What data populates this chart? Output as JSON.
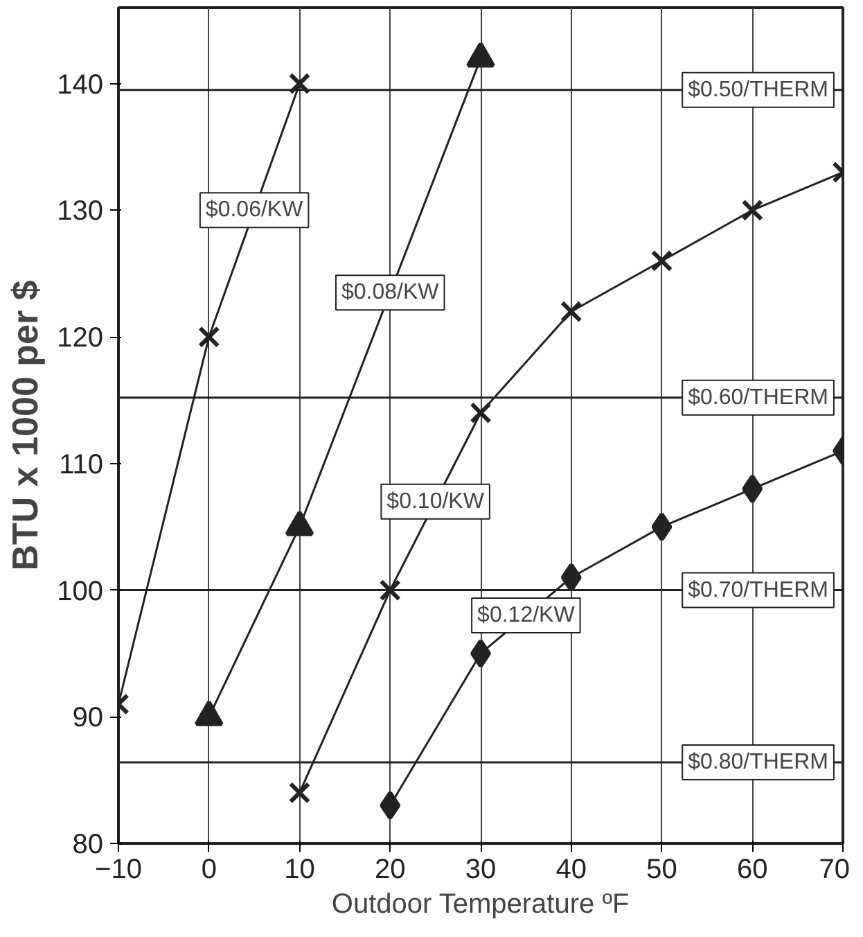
{
  "chart_data": {
    "type": "line",
    "xlabel": "Outdoor Temperature ºF",
    "ylabel": "BTU x 1000 per $",
    "xlim": [
      -10,
      70
    ],
    "ylim": [
      80,
      146
    ],
    "xticks": [
      -10,
      0,
      10,
      20,
      30,
      40,
      50,
      60,
      70
    ],
    "yticks": [
      80,
      90,
      100,
      110,
      120,
      130,
      140
    ],
    "grid": "x",
    "series": [
      {
        "name": "$0.06/KW",
        "color": "#222222",
        "marker": "cross",
        "x": [
          -10,
          0,
          10
        ],
        "values": [
          91,
          120,
          140
        ]
      },
      {
        "name": "$0.08/KW",
        "color": "#222222",
        "marker": "triangle",
        "x": [
          0,
          10,
          30
        ],
        "values": [
          90,
          105,
          142
        ]
      },
      {
        "name": "$0.10/KW",
        "color": "#222222",
        "marker": "cross",
        "x": [
          10,
          20,
          30,
          40,
          50,
          60,
          70
        ],
        "values": [
          84,
          100,
          114,
          122,
          126,
          130,
          133
        ]
      },
      {
        "name": "$0.12/KW",
        "color": "#222222",
        "marker": "diamond",
        "x": [
          20,
          30,
          40,
          50,
          60,
          70
        ],
        "values": [
          83,
          95,
          101,
          105,
          108,
          111
        ]
      }
    ],
    "ref_lines": [
      {
        "axis": "y",
        "value": 139.5,
        "label": "$0.50/THERM"
      },
      {
        "axis": "y",
        "value": 115.2,
        "label": "$0.60/THERM"
      },
      {
        "axis": "y",
        "value": 100,
        "label": "$0.70/THERM"
      },
      {
        "axis": "y",
        "value": 86.4,
        "label": "$0.80/THERM"
      }
    ]
  }
}
